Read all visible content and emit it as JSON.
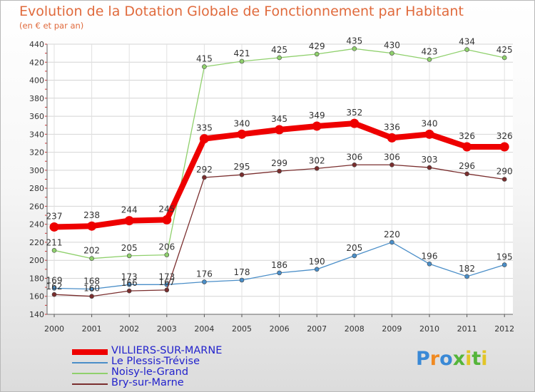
{
  "title": "Evolution de la Dotation Globale de Fonctionnement par Habitant",
  "subtitle": "(en € et par an)",
  "logo_text": "Proxiti",
  "chart_data": {
    "type": "line",
    "title": "Evolution de la Dotation Globale de Fonctionnement par Habitant",
    "ylabel": "(en € et par an)",
    "xlabel": "",
    "categories": [
      "2000",
      "2001",
      "2002",
      "2003",
      "2004",
      "2005",
      "2006",
      "2007",
      "2008",
      "2009",
      "2010",
      "2011",
      "2012"
    ],
    "y_ticks": [
      140,
      160,
      180,
      200,
      220,
      240,
      260,
      280,
      300,
      320,
      340,
      360,
      380,
      400,
      420,
      440
    ],
    "ylim": [
      140,
      440
    ],
    "legend_position": "bottom-left",
    "series": [
      {
        "name": "VILLIERS-SUR-MARNE",
        "color": "#ee0000",
        "emphasis": true,
        "values": [
          237,
          238,
          244,
          245,
          335,
          340,
          345,
          349,
          352,
          336,
          340,
          326,
          326
        ],
        "labels": [
          "237",
          "238",
          "244",
          "245",
          "335",
          "340",
          "345",
          "349",
          "352",
          "336",
          "340",
          "326",
          "326"
        ]
      },
      {
        "name": "Le Plessis-Trévise",
        "color": "#4a8ec8",
        "emphasis": false,
        "values": [
          169,
          168,
          173,
          173,
          176,
          178,
          186,
          190,
          205,
          220,
          196,
          182,
          195
        ],
        "labels": [
          "169",
          "168",
          "173",
          "173",
          "176",
          "178",
          "186",
          "190",
          "205",
          "220",
          "196",
          "182",
          "195"
        ]
      },
      {
        "name": "Noisy-le-Grand",
        "color": "#8fd06c",
        "emphasis": false,
        "values": [
          211,
          202,
          205,
          206,
          415,
          421,
          425,
          429,
          435,
          430,
          423,
          434,
          425
        ],
        "labels": [
          "211",
          "202",
          "205",
          "206",
          "415",
          "421",
          "425",
          "429",
          "435",
          "430",
          "423",
          "434",
          "425"
        ]
      },
      {
        "name": "Bry-sur-Marne",
        "color": "#7a2e2e",
        "emphasis": false,
        "values": [
          162,
          160,
          166,
          167,
          292,
          295,
          299,
          302,
          306,
          306,
          303,
          296,
          290
        ],
        "labels": [
          "162",
          "160",
          "166",
          "167",
          "292",
          "295",
          "299",
          "302",
          "306",
          "306",
          "303",
          "296",
          "290"
        ]
      }
    ]
  }
}
